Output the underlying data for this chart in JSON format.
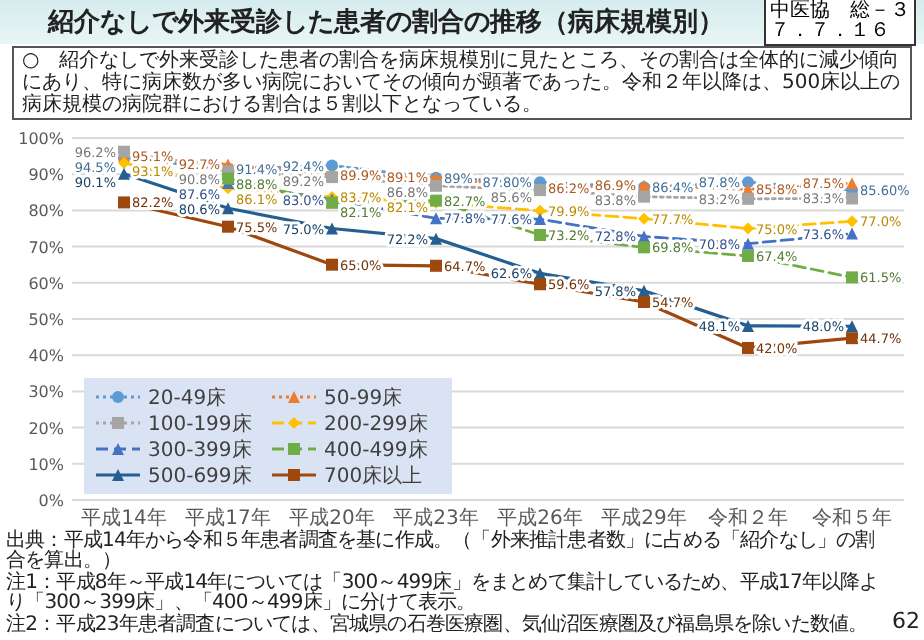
{
  "chart_data": {
    "type": "line",
    "title": "紹介なしで外来受診した患者の割合の推移（病床規模別）",
    "subtitle": "○　紹介なしで外来受診した患者の割合を病床規模別に見たところ、その割合は全体的に減少傾向にあり、特に病床数が多い病院においてその傾向が顕著であった。令和２年以降は、500床以上の病床規模の病院群における割合は５割以下となっている。",
    "categories": [
      "平成14年",
      "平成17年",
      "平成20年",
      "平成23年",
      "平成26年",
      "平成29年",
      "令和２年",
      "令和５年"
    ],
    "series": [
      {
        "name": "20-49床",
        "color": "#5b9bd5",
        "marker": "circle",
        "line_style": "dotted",
        "values": [
          94.5,
          91.4,
          92.4,
          89.0,
          87.8,
          86.4,
          87.8,
          85.6
        ],
        "value_labels": [
          "94.5%",
          "91.4%",
          "92.4%",
          "89%",
          "87.80%",
          "86.4%",
          "87.8%",
          "85.60%"
        ]
      },
      {
        "name": "50-99床",
        "color": "#ed7d31",
        "marker": "triangle",
        "line_style": "dotted",
        "values": [
          95.1,
          92.7,
          89.9,
          89.1,
          86.2,
          86.9,
          85.8,
          87.5
        ],
        "value_labels": [
          "95.1%",
          "92.7%",
          "89.9%",
          "89.1%",
          "86.2%",
          "86.9%",
          "85.8%",
          "87.5%"
        ]
      },
      {
        "name": "100-199床",
        "color": "#a5a5a5",
        "marker": "square",
        "line_style": "dotted",
        "values": [
          96.2,
          90.8,
          89.2,
          86.8,
          85.6,
          83.8,
          83.2,
          83.3
        ],
        "value_labels": [
          "96.2%",
          "90.8%",
          "89.2%",
          "86.8%",
          "85.6%",
          "83.8%",
          "83.2%",
          "83.3%"
        ]
      },
      {
        "name": "200-299床",
        "color": "#ffc000",
        "marker": "diamond",
        "line_style": "dashed",
        "values": [
          93.1,
          86.1,
          83.7,
          82.1,
          79.9,
          77.7,
          75.0,
          77.0
        ],
        "value_labels": [
          "93.1%",
          "86.1%",
          "83.7%",
          "82.1%",
          "79.9%",
          "77.7%",
          "75.0%",
          "77.0%"
        ]
      },
      {
        "name": "300-399床",
        "color": "#4472c4",
        "marker": "triangle",
        "line_style": "dashed",
        "values": [
          null,
          87.6,
          83.0,
          77.8,
          77.6,
          72.8,
          70.8,
          73.6
        ],
        "value_labels": [
          null,
          "87.6%",
          "83.0%",
          "77.8%",
          "77.6%",
          "72.8%",
          "70.8%",
          "73.6%"
        ]
      },
      {
        "name": "400-499床",
        "color": "#70ad47",
        "marker": "square",
        "line_style": "dashed",
        "values": [
          null,
          88.8,
          82.1,
          82.7,
          73.2,
          69.8,
          67.4,
          61.5
        ],
        "value_labels": [
          null,
          "88.8%",
          "82.1%",
          "82.7%",
          "73.2%",
          "69.8%",
          "67.4%",
          "61.5%"
        ]
      },
      {
        "name": "500-699床",
        "color": "#255e91",
        "marker": "triangle",
        "line_style": "solid",
        "values": [
          90.1,
          80.6,
          75.0,
          72.2,
          62.6,
          57.8,
          48.1,
          48.0
        ],
        "value_labels": [
          "90.1%",
          "80.6%",
          "75.0%",
          "72.2%",
          "62.6%",
          "57.8%",
          "48.1%",
          "48.0%"
        ]
      },
      {
        "name": "700床以上",
        "color": "#9e480e",
        "marker": "square",
        "line_style": "solid",
        "values": [
          82.2,
          75.5,
          65.0,
          64.7,
          59.6,
          54.7,
          42.0,
          44.7
        ],
        "value_labels": [
          "82.2%",
          "75.5%",
          "65.0%",
          "64.7%",
          "59.6%",
          "54.7%",
          "42.0%",
          "44.7%"
        ]
      }
    ],
    "ylim": [
      0,
      100
    ],
    "yticks": [
      {
        "value": 0,
        "label": "0%"
      },
      {
        "value": 10,
        "label": "10%"
      },
      {
        "value": 20,
        "label": "20%"
      },
      {
        "value": 30,
        "label": "30%"
      },
      {
        "value": 40,
        "label": "40%"
      },
      {
        "value": 50,
        "label": "50%"
      },
      {
        "value": 60,
        "label": "60%"
      },
      {
        "value": 70,
        "label": "70%"
      },
      {
        "value": 80,
        "label": "80%"
      },
      {
        "value": 90,
        "label": "90%"
      },
      {
        "value": 100,
        "label": "100%"
      }
    ],
    "grid": "y",
    "legend": "bottom left",
    "annotations": [
      "中医協　総－３",
      "７．７．１６",
      "出典：平成14年から令和５年患者調査を基に作成。（「外来推計患者数」に占める「紹介なし」の割合を算出。）",
      "注1：平成8年～平成14年については「300～499床」をまとめて集計しているため、平成17年以降より「300～399床」、「400～499床」に分けて表示。",
      "注2：平成23年患者調査については、宮城県の石巻医療圏、気仙沼医療圏及び福島県を除いた数値。",
      "62"
    ]
  }
}
